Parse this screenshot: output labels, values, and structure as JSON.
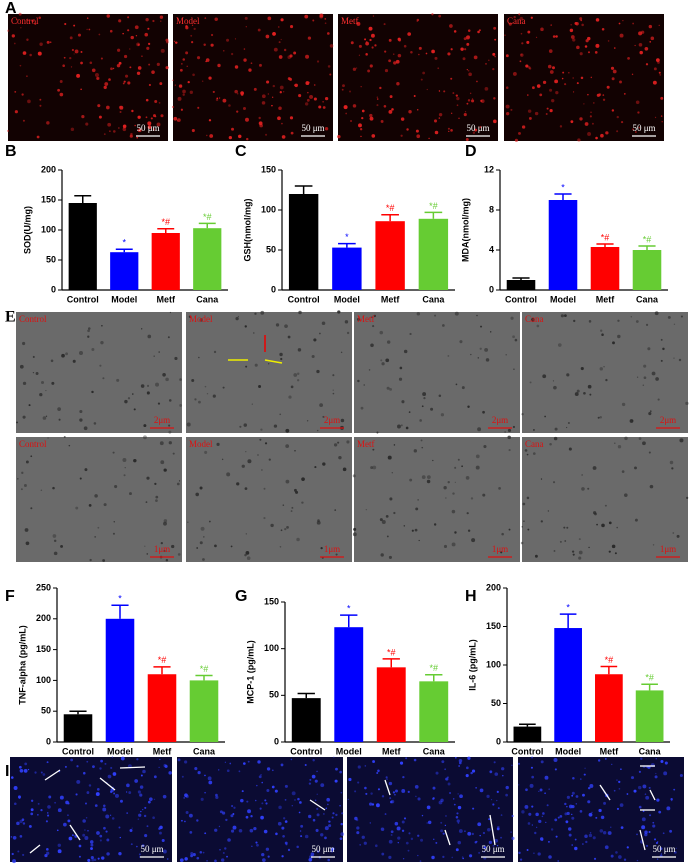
{
  "panels": [
    {
      "label": "A",
      "images": [
        {
          "label": "Control",
          "scale": "50 μm"
        },
        {
          "label": "Model",
          "scale": "50 μm"
        },
        {
          "label": "Metf",
          "scale": "50 μm"
        },
        {
          "label": "Cana",
          "scale": "50 μm"
        }
      ]
    },
    {
      "label": "E",
      "images": [
        {
          "label": "Control",
          "scale": "2μm"
        },
        {
          "label": "Model",
          "scale": "2μm"
        },
        {
          "label": "Metf",
          "scale": "2μm"
        },
        {
          "label": "Cana",
          "scale": "2μm"
        },
        {
          "label": "Control",
          "scale": "1μm"
        },
        {
          "label": "Model",
          "scale": "1μm"
        },
        {
          "label": "Metf",
          "scale": "1μm"
        },
        {
          "label": "Cana",
          "scale": "1μm"
        }
      ]
    },
    {
      "label": "I",
      "images": [
        {
          "scale": "50 μm"
        },
        {
          "scale": "50 μm"
        },
        {
          "scale": "50 μm"
        },
        {
          "scale": "50 μm"
        }
      ]
    }
  ],
  "chart_data": [
    {
      "type": "bar",
      "label": "B",
      "ylabel": "SOD(U/mg)",
      "categories": [
        "Control",
        "Model",
        "Metf",
        "Cana"
      ],
      "values": [
        145,
        63,
        95,
        103
      ],
      "errors": [
        12,
        5,
        7,
        8
      ],
      "annotations": [
        null,
        "*",
        "*#",
        "*#"
      ],
      "colors": [
        "#000000",
        "#0000ff",
        "#ff0000",
        "#66cc33"
      ],
      "ylim": [
        0,
        200
      ],
      "yticks": [
        0,
        50,
        100,
        150,
        200
      ]
    },
    {
      "type": "bar",
      "label": "C",
      "ylabel": "GSH(nmol/mg)",
      "categories": [
        "Control",
        "Model",
        "Metf",
        "Cana"
      ],
      "values": [
        120,
        53,
        86,
        89
      ],
      "errors": [
        10,
        5,
        8,
        8
      ],
      "annotations": [
        null,
        "*",
        "*#",
        "*#"
      ],
      "colors": [
        "#000000",
        "#0000ff",
        "#ff0000",
        "#66cc33"
      ],
      "ylim": [
        0,
        150
      ],
      "yticks": [
        0,
        50,
        100,
        150
      ]
    },
    {
      "type": "bar",
      "label": "D",
      "ylabel": "MDA(nmol/mg)",
      "categories": [
        "Control",
        "Model",
        "Metf",
        "Cana"
      ],
      "values": [
        1.0,
        9.0,
        4.3,
        4.0
      ],
      "errors": [
        0.2,
        0.6,
        0.3,
        0.4
      ],
      "annotations": [
        null,
        "*",
        "*#",
        "*#"
      ],
      "colors": [
        "#000000",
        "#0000ff",
        "#ff0000",
        "#66cc33"
      ],
      "ylim": [
        0,
        12
      ],
      "yticks": [
        0,
        4,
        8,
        12
      ]
    },
    {
      "type": "bar",
      "label": "F",
      "ylabel": "TNF-alpha (pg/mL)",
      "categories": [
        "Control",
        "Model",
        "Metf",
        "Cana"
      ],
      "values": [
        45,
        200,
        110,
        100
      ],
      "errors": [
        5,
        22,
        12,
        8
      ],
      "annotations": [
        null,
        "*",
        "*#",
        "*#"
      ],
      "colors": [
        "#000000",
        "#0000ff",
        "#ff0000",
        "#66cc33"
      ],
      "ylim": [
        0,
        250
      ],
      "yticks": [
        0,
        50,
        100,
        150,
        200,
        250
      ]
    },
    {
      "type": "bar",
      "label": "G",
      "ylabel": "MCP-1 (pg/mL)",
      "categories": [
        "Control",
        "Model",
        "Metf",
        "Cana"
      ],
      "values": [
        47,
        123,
        80,
        65
      ],
      "errors": [
        5,
        13,
        9,
        7
      ],
      "annotations": [
        null,
        "*",
        "*#",
        "*#"
      ],
      "colors": [
        "#000000",
        "#0000ff",
        "#ff0000",
        "#66cc33"
      ],
      "ylim": [
        0,
        150
      ],
      "yticks": [
        0,
        50,
        100,
        150
      ]
    },
    {
      "type": "bar",
      "label": "H",
      "ylabel": "IL-6 (pg/mL)",
      "categories": [
        "Control",
        "Model",
        "Metf",
        "Cana"
      ],
      "values": [
        20,
        148,
        88,
        67
      ],
      "errors": [
        3,
        18,
        10,
        8
      ],
      "annotations": [
        null,
        "*",
        "*#",
        "*#"
      ],
      "colors": [
        "#000000",
        "#0000ff",
        "#ff0000",
        "#66cc33"
      ],
      "ylim": [
        0,
        200
      ],
      "yticks": [
        0,
        50,
        100,
        150,
        200
      ]
    }
  ]
}
